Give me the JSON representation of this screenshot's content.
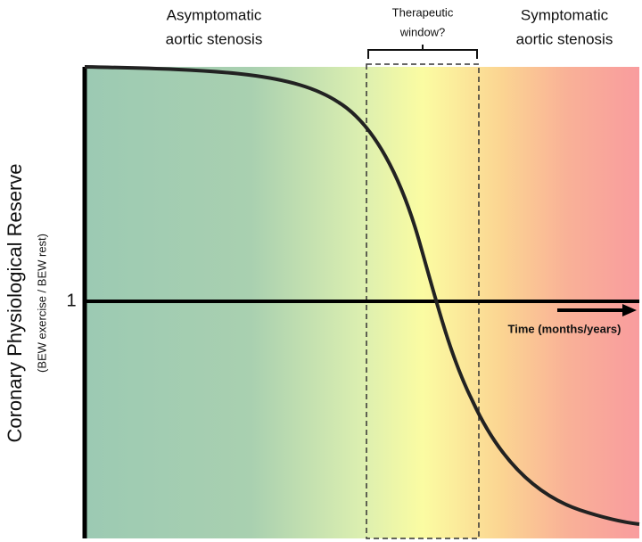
{
  "regions": {
    "left": {
      "lines": [
        "Asymptomatic",
        "aortic stenosis"
      ]
    },
    "middle": {
      "lines": [
        "Therapeutic",
        "window?"
      ]
    },
    "right": {
      "lines": [
        "Symptomatic",
        "aortic stenosis"
      ]
    }
  },
  "axes": {
    "y_title": "Coronary Physiological Reserve",
    "y_subtitle": "(BEW exercise / BEW rest)",
    "y_reference_label": "1",
    "x_title": "Time (months/years)"
  }
}
